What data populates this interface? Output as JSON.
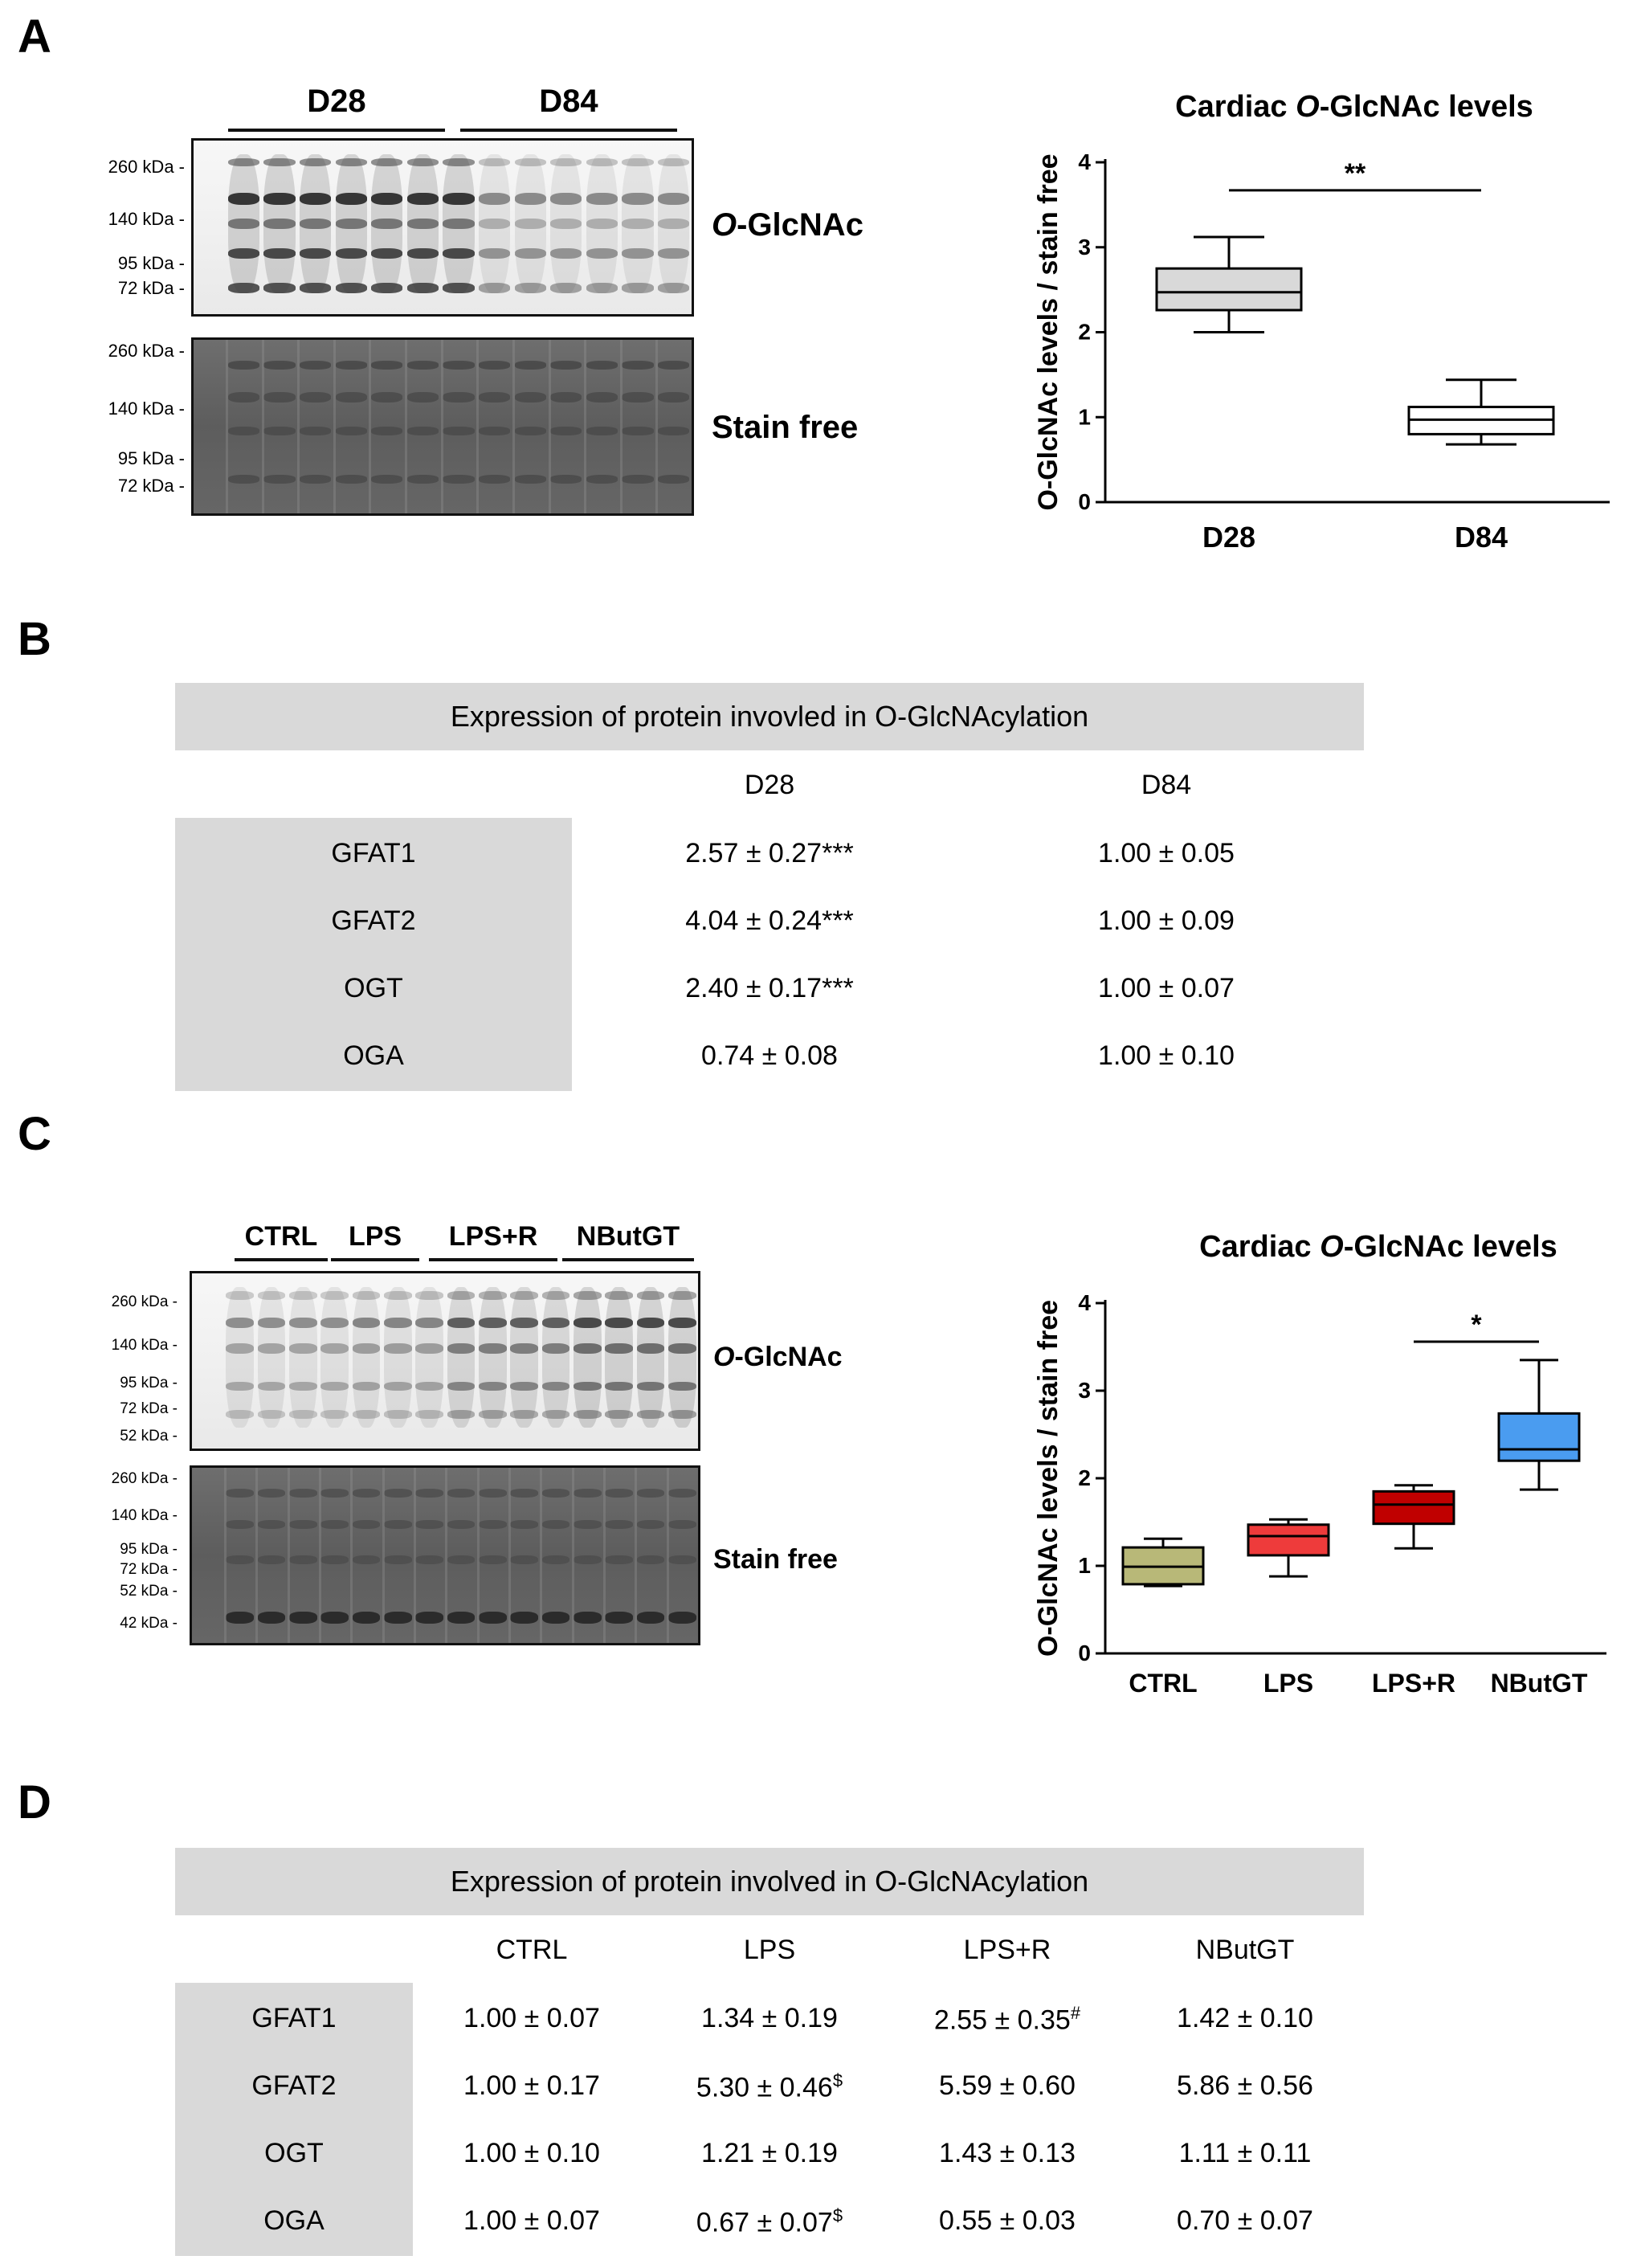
{
  "panels": {
    "a": "A",
    "b": "B",
    "c": "C",
    "d": "D"
  },
  "panelA": {
    "groups": [
      "D28",
      "D84"
    ],
    "blot_labels": {
      "italic": "O",
      "rest": "-GlcNAc",
      "stain_free": "Stain free"
    },
    "markers_oglcnac": [
      "260 kDa -",
      "140 kDa -",
      "95 kDa -",
      "72 kDa -"
    ],
    "markers_stainfree": [
      "260 kDa -",
      "140 kDa -",
      "95 kDa -",
      "72 kDa -"
    ]
  },
  "panelC": {
    "groups": [
      "CTRL",
      "LPS",
      "LPS+R",
      "NButGT"
    ],
    "blot_labels": {
      "italic": "O",
      "rest": "-GlcNAc",
      "stain_free": "Stain free"
    },
    "markers_oglcnac": [
      "260 kDa -",
      "140 kDa -",
      "95 kDa -",
      "72 kDa -",
      "52 kDa -"
    ],
    "markers_stainfree": [
      "260 kDa -",
      "140 kDa -",
      "95 kDa -",
      "72 kDa -",
      "52 kDa -",
      "42 kDa -"
    ]
  },
  "chart_data": [
    {
      "type": "box",
      "title_prefix": "Cardiac ",
      "title_italic": "O",
      "title_suffix": "-GlcNAc levels",
      "ylabel": "O-GlcNAc levels / stain free",
      "categories": [
        "D28",
        "D84"
      ],
      "ylim": [
        0,
        4
      ],
      "yticks": [
        "0",
        "1",
        "2",
        "3",
        "4"
      ],
      "boxes": [
        {
          "min": 2.0,
          "q1": 2.26,
          "median": 2.47,
          "q3": 2.75,
          "max": 3.12,
          "color": "#d9d9d9"
        },
        {
          "min": 0.68,
          "q1": 0.8,
          "median": 0.97,
          "q3": 1.12,
          "max": 1.44,
          "color": "#ffffff"
        }
      ],
      "significance": [
        {
          "from": 0,
          "to": 1,
          "y": 3.67,
          "label": "**"
        }
      ]
    },
    {
      "type": "box",
      "title_prefix": "Cardiac ",
      "title_italic": "O",
      "title_suffix": "-GlcNAc levels",
      "ylabel": "O-GlcNAc levels / stain free",
      "categories": [
        "CTRL",
        "LPS",
        "LPS+R",
        "NButGT"
      ],
      "ylim": [
        0,
        4
      ],
      "yticks": [
        "0",
        "1",
        "2",
        "3",
        "4"
      ],
      "boxes": [
        {
          "min": 0.77,
          "q1": 0.79,
          "median": 0.99,
          "q3": 1.21,
          "max": 1.31,
          "color": "#b8b878"
        },
        {
          "min": 0.88,
          "q1": 1.12,
          "median": 1.34,
          "q3": 1.47,
          "max": 1.53,
          "color": "#ee3b3b"
        },
        {
          "min": 1.2,
          "q1": 1.48,
          "median": 1.7,
          "q3": 1.85,
          "max": 1.92,
          "color": "#c00000"
        },
        {
          "min": 1.87,
          "q1": 2.2,
          "median": 2.33,
          "q3": 2.74,
          "max": 3.35,
          "color": "#4a9cf0"
        }
      ],
      "significance": [
        {
          "from": 2,
          "to": 3,
          "y": 3.56,
          "label": "*"
        }
      ]
    }
  ],
  "tableB": {
    "title": "Expression of protein invovled in O-GlcNAcylation",
    "columns": [
      "D28",
      "D84"
    ],
    "rows": [
      {
        "label": "GFAT1",
        "cells": [
          "2.57 ± 0.27***",
          "1.00 ± 0.05"
        ]
      },
      {
        "label": "GFAT2",
        "cells": [
          "4.04 ± 0.24***",
          "1.00 ± 0.09"
        ]
      },
      {
        "label": "OGT",
        "cells": [
          "2.40 ± 0.17***",
          "1.00 ± 0.07"
        ]
      },
      {
        "label": "OGA",
        "cells": [
          "0.74 ± 0.08",
          "1.00 ± 0.10"
        ]
      }
    ]
  },
  "tableD": {
    "title": "Expression of protein involved in O-GlcNAcylation",
    "columns": [
      "CTRL",
      "LPS",
      "LPS+R",
      "NButGT"
    ],
    "rows": [
      {
        "label": "GFAT1",
        "cells": [
          {
            "v": "1.00 ± 0.07",
            "s": ""
          },
          {
            "v": "1.34 ± 0.19",
            "s": ""
          },
          {
            "v": "2.55 ± 0.35",
            "s": "#"
          },
          {
            "v": "1.42 ± 0.10",
            "s": ""
          }
        ]
      },
      {
        "label": "GFAT2",
        "cells": [
          {
            "v": "1.00 ± 0.17",
            "s": ""
          },
          {
            "v": "5.30 ± 0.46",
            "s": "$"
          },
          {
            "v": "5.59 ± 0.60",
            "s": ""
          },
          {
            "v": "5.86 ± 0.56",
            "s": ""
          }
        ]
      },
      {
        "label": "OGT",
        "cells": [
          {
            "v": "1.00 ± 0.10",
            "s": ""
          },
          {
            "v": "1.21 ± 0.19",
            "s": ""
          },
          {
            "v": "1.43 ± 0.13",
            "s": ""
          },
          {
            "v": "1.11 ± 0.11",
            "s": ""
          }
        ]
      },
      {
        "label": "OGA",
        "cells": [
          {
            "v": "1.00 ± 0.07",
            "s": ""
          },
          {
            "v": "0.67 ± 0.07",
            "s": "$"
          },
          {
            "v": "0.55 ± 0.03",
            "s": ""
          },
          {
            "v": "0.70 ± 0.07",
            "s": ""
          }
        ]
      }
    ]
  }
}
